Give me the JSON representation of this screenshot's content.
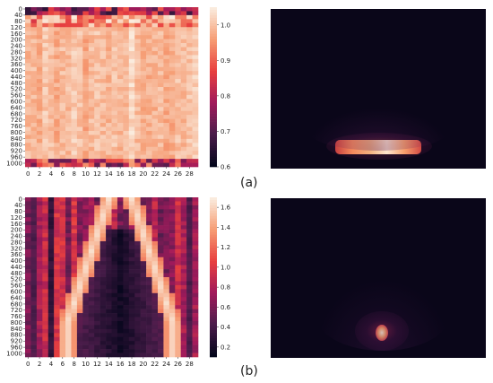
{
  "panel_labels": [
    "(a)",
    "(b)"
  ],
  "colors": {
    "background_panel": "#0a0619",
    "colormap_rocket": [
      "#03051a",
      "#4c1d4b",
      "#a11a5b",
      "#e83f3f",
      "#f69c73",
      "#faebdd"
    ]
  },
  "chart_data": [
    {
      "type": "heatmap",
      "panel": "(a)",
      "colormap": "rocket",
      "x_ticks": [
        "0",
        "2",
        "4",
        "6",
        "8",
        "10",
        "12",
        "14",
        "16",
        "18",
        "20",
        "22",
        "24",
        "26",
        "28"
      ],
      "y_ticks": [
        "0",
        "40",
        "80",
        "120",
        "160",
        "200",
        "240",
        "280",
        "320",
        "360",
        "400",
        "440",
        "480",
        "520",
        "560",
        "600",
        "640",
        "680",
        "720",
        "760",
        "800",
        "840",
        "880",
        "920",
        "960",
        "1000"
      ],
      "colorbar_ticks": [
        "0.6",
        "0.7",
        "0.8",
        "0.9",
        "1.0"
      ],
      "clim": [
        0.6,
        1.05
      ],
      "n_cols": 30,
      "n_rows": 1024,
      "description_values": {
        "bulk_level": 1.02,
        "top_rows_min": 0.65,
        "bottom_rows_min": 0.7
      }
    },
    {
      "type": "heatmap",
      "panel": "(b)",
      "colormap": "rocket",
      "x_ticks": [
        "0",
        "2",
        "4",
        "6",
        "8",
        "10",
        "12",
        "14",
        "16",
        "18",
        "20",
        "22",
        "24",
        "26",
        "28"
      ],
      "y_ticks": [
        "0",
        "40",
        "80",
        "120",
        "160",
        "200",
        "240",
        "280",
        "320",
        "360",
        "400",
        "440",
        "480",
        "520",
        "560",
        "600",
        "640",
        "680",
        "720",
        "760",
        "800",
        "840",
        "880",
        "920",
        "960",
        "1000"
      ],
      "colorbar_ticks": [
        "0.2",
        "0.4",
        "0.6",
        "0.8",
        "1.0",
        "1.2",
        "1.4",
        "1.6"
      ],
      "clim": [
        0.1,
        1.7
      ],
      "n_cols": 30,
      "n_rows": 1024,
      "description_values": {
        "arc_peak": 1.65,
        "arc_center_col": 16,
        "valley_min": 0.12
      }
    }
  ]
}
